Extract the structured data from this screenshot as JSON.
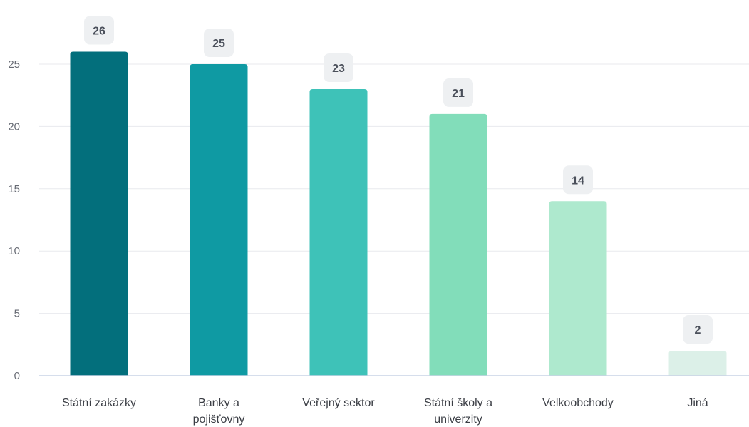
{
  "chart_data": {
    "type": "bar",
    "title": "",
    "xlabel": "",
    "ylabel": "",
    "categories": [
      [
        "Státní zakázky"
      ],
      [
        "Banky a",
        "pojišťovny"
      ],
      [
        "Veřejný sektor"
      ],
      [
        "Státní školy a",
        "univerzity"
      ],
      [
        "Velkoobchody"
      ],
      [
        "Jiná"
      ]
    ],
    "values": [
      26,
      25,
      23,
      21,
      14,
      2
    ],
    "value_labels": [
      "26",
      "25",
      "23",
      "21",
      "14",
      "2"
    ],
    "bar_colors": [
      "#036f7c",
      "#0f9aa3",
      "#3ec2b8",
      "#82ddba",
      "#aee9ce",
      "#dcf0e8"
    ],
    "yticks": [
      "0",
      "5",
      "10",
      "15",
      "20",
      "25"
    ],
    "ytick_values": [
      0,
      5,
      10,
      15,
      20,
      25
    ],
    "ylim": [
      0,
      25
    ],
    "grid": true,
    "legend": "none",
    "data_labels": true
  }
}
